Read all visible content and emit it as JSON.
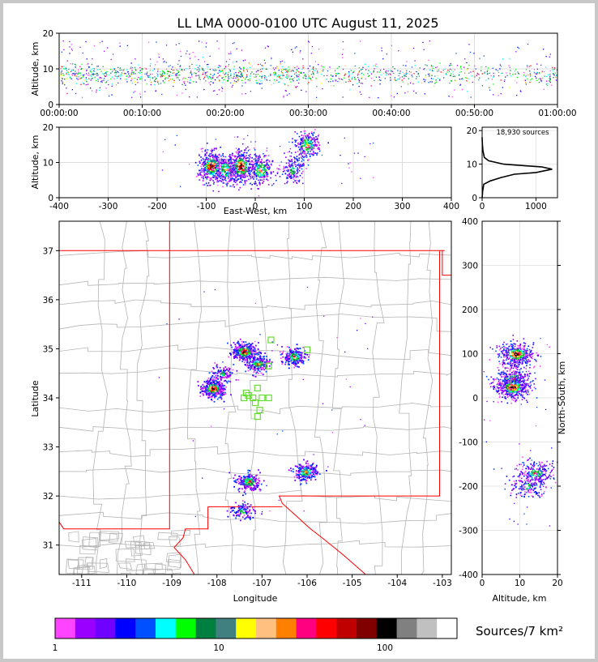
{
  "title": "LL LMA 0000-0100 UTC August 11, 2025",
  "chart_data": [
    {
      "id": "time_height",
      "type": "scatter",
      "ylabel": "Altitude, km",
      "xlim_minutes": [
        0,
        60
      ],
      "ylim": [
        0,
        20
      ],
      "yticks": [
        0,
        10,
        20
      ],
      "xticks": [
        "00:00:00",
        "00:10:00",
        "00:20:00",
        "00:30:00",
        "00:40:00",
        "00:50:00",
        "01:00:00"
      ],
      "core_altitude_km": [
        6,
        11
      ],
      "grid": true
    },
    {
      "id": "ew_height",
      "type": "scatter",
      "xlabel": "East-West, km",
      "ylabel": "Altitude, km",
      "xlim": [
        -400,
        400
      ],
      "ylim": [
        0,
        20
      ],
      "xticks": [
        -400,
        -300,
        -200,
        -100,
        0,
        100,
        200,
        300,
        400
      ],
      "yticks": [
        0,
        10,
        20
      ],
      "clusters": [
        {
          "x": -90,
          "alt": 9,
          "density": "high"
        },
        {
          "x": -60,
          "alt": 8,
          "density": "medium"
        },
        {
          "x": -30,
          "alt": 9,
          "density": "high"
        },
        {
          "x": 10,
          "alt": 8,
          "density": "medium"
        },
        {
          "x": 75,
          "alt": 8,
          "density": "low"
        },
        {
          "x": 105,
          "alt": 15,
          "density": "medium"
        }
      ],
      "grid": true
    },
    {
      "id": "altitude_histogram",
      "type": "line",
      "annotation": "18,930 sources",
      "xlim": [
        0,
        1400
      ],
      "ylim": [
        0,
        21
      ],
      "xticks": [
        0,
        1000
      ],
      "yticks": [
        0,
        10,
        20
      ],
      "points": [
        [
          0,
          0
        ],
        [
          10,
          2
        ],
        [
          30,
          4
        ],
        [
          150,
          5
        ],
        [
          350,
          6
        ],
        [
          600,
          7
        ],
        [
          1000,
          7.5
        ],
        [
          1300,
          8.5
        ],
        [
          1100,
          9.2
        ],
        [
          800,
          9.5
        ],
        [
          400,
          10
        ],
        [
          120,
          11
        ],
        [
          40,
          12
        ],
        [
          15,
          14
        ],
        [
          5,
          16
        ],
        [
          0,
          18
        ]
      ]
    },
    {
      "id": "plan_view",
      "type": "scatter",
      "xlabel": "Longitude",
      "ylabel": "Latitude",
      "xlim": [
        -111.5,
        -102.8
      ],
      "ylim": [
        30.4,
        37.6
      ],
      "xticks": [
        -111,
        -110,
        -109,
        -108,
        -107,
        -106,
        -105,
        -104,
        -103
      ],
      "yticks": [
        31,
        32,
        33,
        34,
        35,
        36,
        37
      ],
      "clusters": [
        {
          "lon": -107.4,
          "lat": 34.95,
          "density": "high"
        },
        {
          "lon": -107.1,
          "lat": 34.7,
          "density": "medium"
        },
        {
          "lon": -106.3,
          "lat": 34.85,
          "density": "medium"
        },
        {
          "lon": -108.1,
          "lat": 34.2,
          "density": "high"
        },
        {
          "lon": -107.9,
          "lat": 34.5,
          "density": "low"
        },
        {
          "lon": -107.3,
          "lat": 32.3,
          "density": "medium"
        },
        {
          "lon": -106.05,
          "lat": 32.5,
          "density": "medium"
        },
        {
          "lon": -107.45,
          "lat": 31.7,
          "density": "low"
        }
      ],
      "stations": [
        [
          -106.8,
          35.18
        ],
        [
          -106.0,
          34.98
        ],
        [
          -106.85,
          34.65
        ],
        [
          -107.3,
          34.05
        ],
        [
          -107.1,
          34.2
        ],
        [
          -107.0,
          34.0
        ],
        [
          -107.15,
          33.9
        ],
        [
          -106.85,
          34.0
        ],
        [
          -107.05,
          33.75
        ],
        [
          -107.1,
          33.62
        ],
        [
          -107.2,
          34.0
        ],
        [
          -107.4,
          34.0
        ],
        [
          -107.35,
          34.1
        ]
      ]
    },
    {
      "id": "ns_height",
      "type": "scatter",
      "xlabel": "Altitude, km",
      "ylabel": "North-South, km",
      "xlim": [
        0,
        20
      ],
      "ylim": [
        -400,
        400
      ],
      "xticks": [
        0,
        10,
        20
      ],
      "yticks": [
        -400,
        -300,
        -200,
        -100,
        0,
        100,
        200,
        300,
        400
      ],
      "clusters": [
        {
          "alt": 9,
          "ns": 100,
          "density": "high"
        },
        {
          "alt": 8,
          "ns": 45,
          "density": "medium"
        },
        {
          "alt": 8,
          "ns": 25,
          "density": "high"
        },
        {
          "alt": 14,
          "ns": -170,
          "density": "medium"
        },
        {
          "alt": 12,
          "ns": -200,
          "density": "low"
        }
      ]
    }
  ],
  "colorbar": {
    "label": "Sources/7 km²",
    "ticks": [
      "1",
      "10",
      "100"
    ],
    "colors": [
      "#ff44ff",
      "#9a00ff",
      "#7000ff",
      "#0000ff",
      "#0050ff",
      "#00ffff",
      "#00ff00",
      "#008040",
      "#408080",
      "#ffff00",
      "#ffc080",
      "#ff8000",
      "#ff0080",
      "#ff0000",
      "#c00000",
      "#800000",
      "#000000",
      "#808080",
      "#c0c0c0",
      "#ffffff"
    ]
  }
}
